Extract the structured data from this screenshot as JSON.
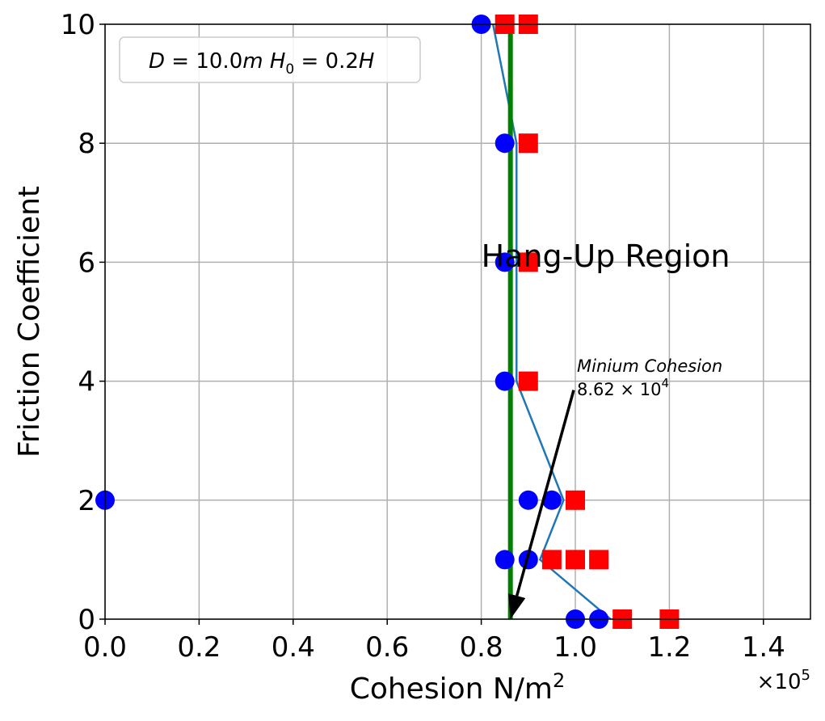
{
  "chart_data": {
    "type": "scatter",
    "xlabel": "Cohesion N/m",
    "xlabel_sup": "2",
    "ylabel": "Friction Coefficient",
    "x_offset_label": "×10",
    "x_offset_sup": "5",
    "xlim": [
      0,
      150000
    ],
    "ylim": [
      0,
      10
    ],
    "x_ticks": [
      0,
      20000,
      40000,
      60000,
      80000,
      100000,
      120000,
      140000
    ],
    "x_tick_labels": [
      "0.0",
      "0.2",
      "0.4",
      "0.6",
      "0.8",
      "1.0",
      "1.2",
      "1.4"
    ],
    "y_ticks": [
      0,
      2,
      4,
      6,
      8,
      10
    ],
    "y_tick_labels": [
      "0",
      "2",
      "4",
      "6",
      "8",
      "10"
    ],
    "grid": true,
    "legend": {
      "placement": "top-left",
      "label_parts": [
        "D",
        " = 10.0",
        "m",
        " H",
        "0",
        " = 0.2",
        "H"
      ]
    },
    "series": [
      {
        "marker": "circle",
        "color": "#0000ff",
        "points": [
          {
            "x": 80000,
            "y": 10
          },
          {
            "x": 85000,
            "y": 8
          },
          {
            "x": 85000,
            "y": 6
          },
          {
            "x": 85000,
            "y": 4
          },
          {
            "x": 0,
            "y": 2
          },
          {
            "x": 90000,
            "y": 2
          },
          {
            "x": 95000,
            "y": 2
          },
          {
            "x": 85000,
            "y": 1
          },
          {
            "x": 90000,
            "y": 1
          },
          {
            "x": 100000,
            "y": 0
          },
          {
            "x": 105000,
            "y": 0
          }
        ]
      },
      {
        "marker": "square",
        "color": "#ff0000",
        "points": [
          {
            "x": 85000,
            "y": 10
          },
          {
            "x": 90000,
            "y": 10
          },
          {
            "x": 90000,
            "y": 8
          },
          {
            "x": 90000,
            "y": 6
          },
          {
            "x": 90000,
            "y": 4
          },
          {
            "x": 100000,
            "y": 2
          },
          {
            "x": 95000,
            "y": 1
          },
          {
            "x": 100000,
            "y": 1
          },
          {
            "x": 105000,
            "y": 1
          },
          {
            "x": 110000,
            "y": 0
          },
          {
            "x": 120000,
            "y": 0
          }
        ]
      },
      {
        "type": "line",
        "color": "#1f77b4",
        "points": [
          {
            "x": 82500,
            "y": 10
          },
          {
            "x": 87500,
            "y": 8
          },
          {
            "x": 87500,
            "y": 6
          },
          {
            "x": 87500,
            "y": 4
          },
          {
            "x": 97500,
            "y": 2
          },
          {
            "x": 92500,
            "y": 1
          },
          {
            "x": 107500,
            "y": 0
          }
        ]
      },
      {
        "type": "vline",
        "color": "#008000",
        "x": 86200
      }
    ],
    "annotations": {
      "region_label": "Hang-Up Region",
      "region_position": {
        "x": 80000,
        "y": 6.1
      },
      "min_cohesion_line1": "Minium Cohesion",
      "min_cohesion_line2_mantissa": "8.62 × 10",
      "min_cohesion_line2_exp": "4",
      "min_cohesion_text_position": {
        "x": 100000,
        "y": 4.2
      },
      "arrow_from": {
        "x": 100000,
        "y": 3.85
      },
      "arrow_to": {
        "x": 86200,
        "y": 0
      }
    }
  }
}
